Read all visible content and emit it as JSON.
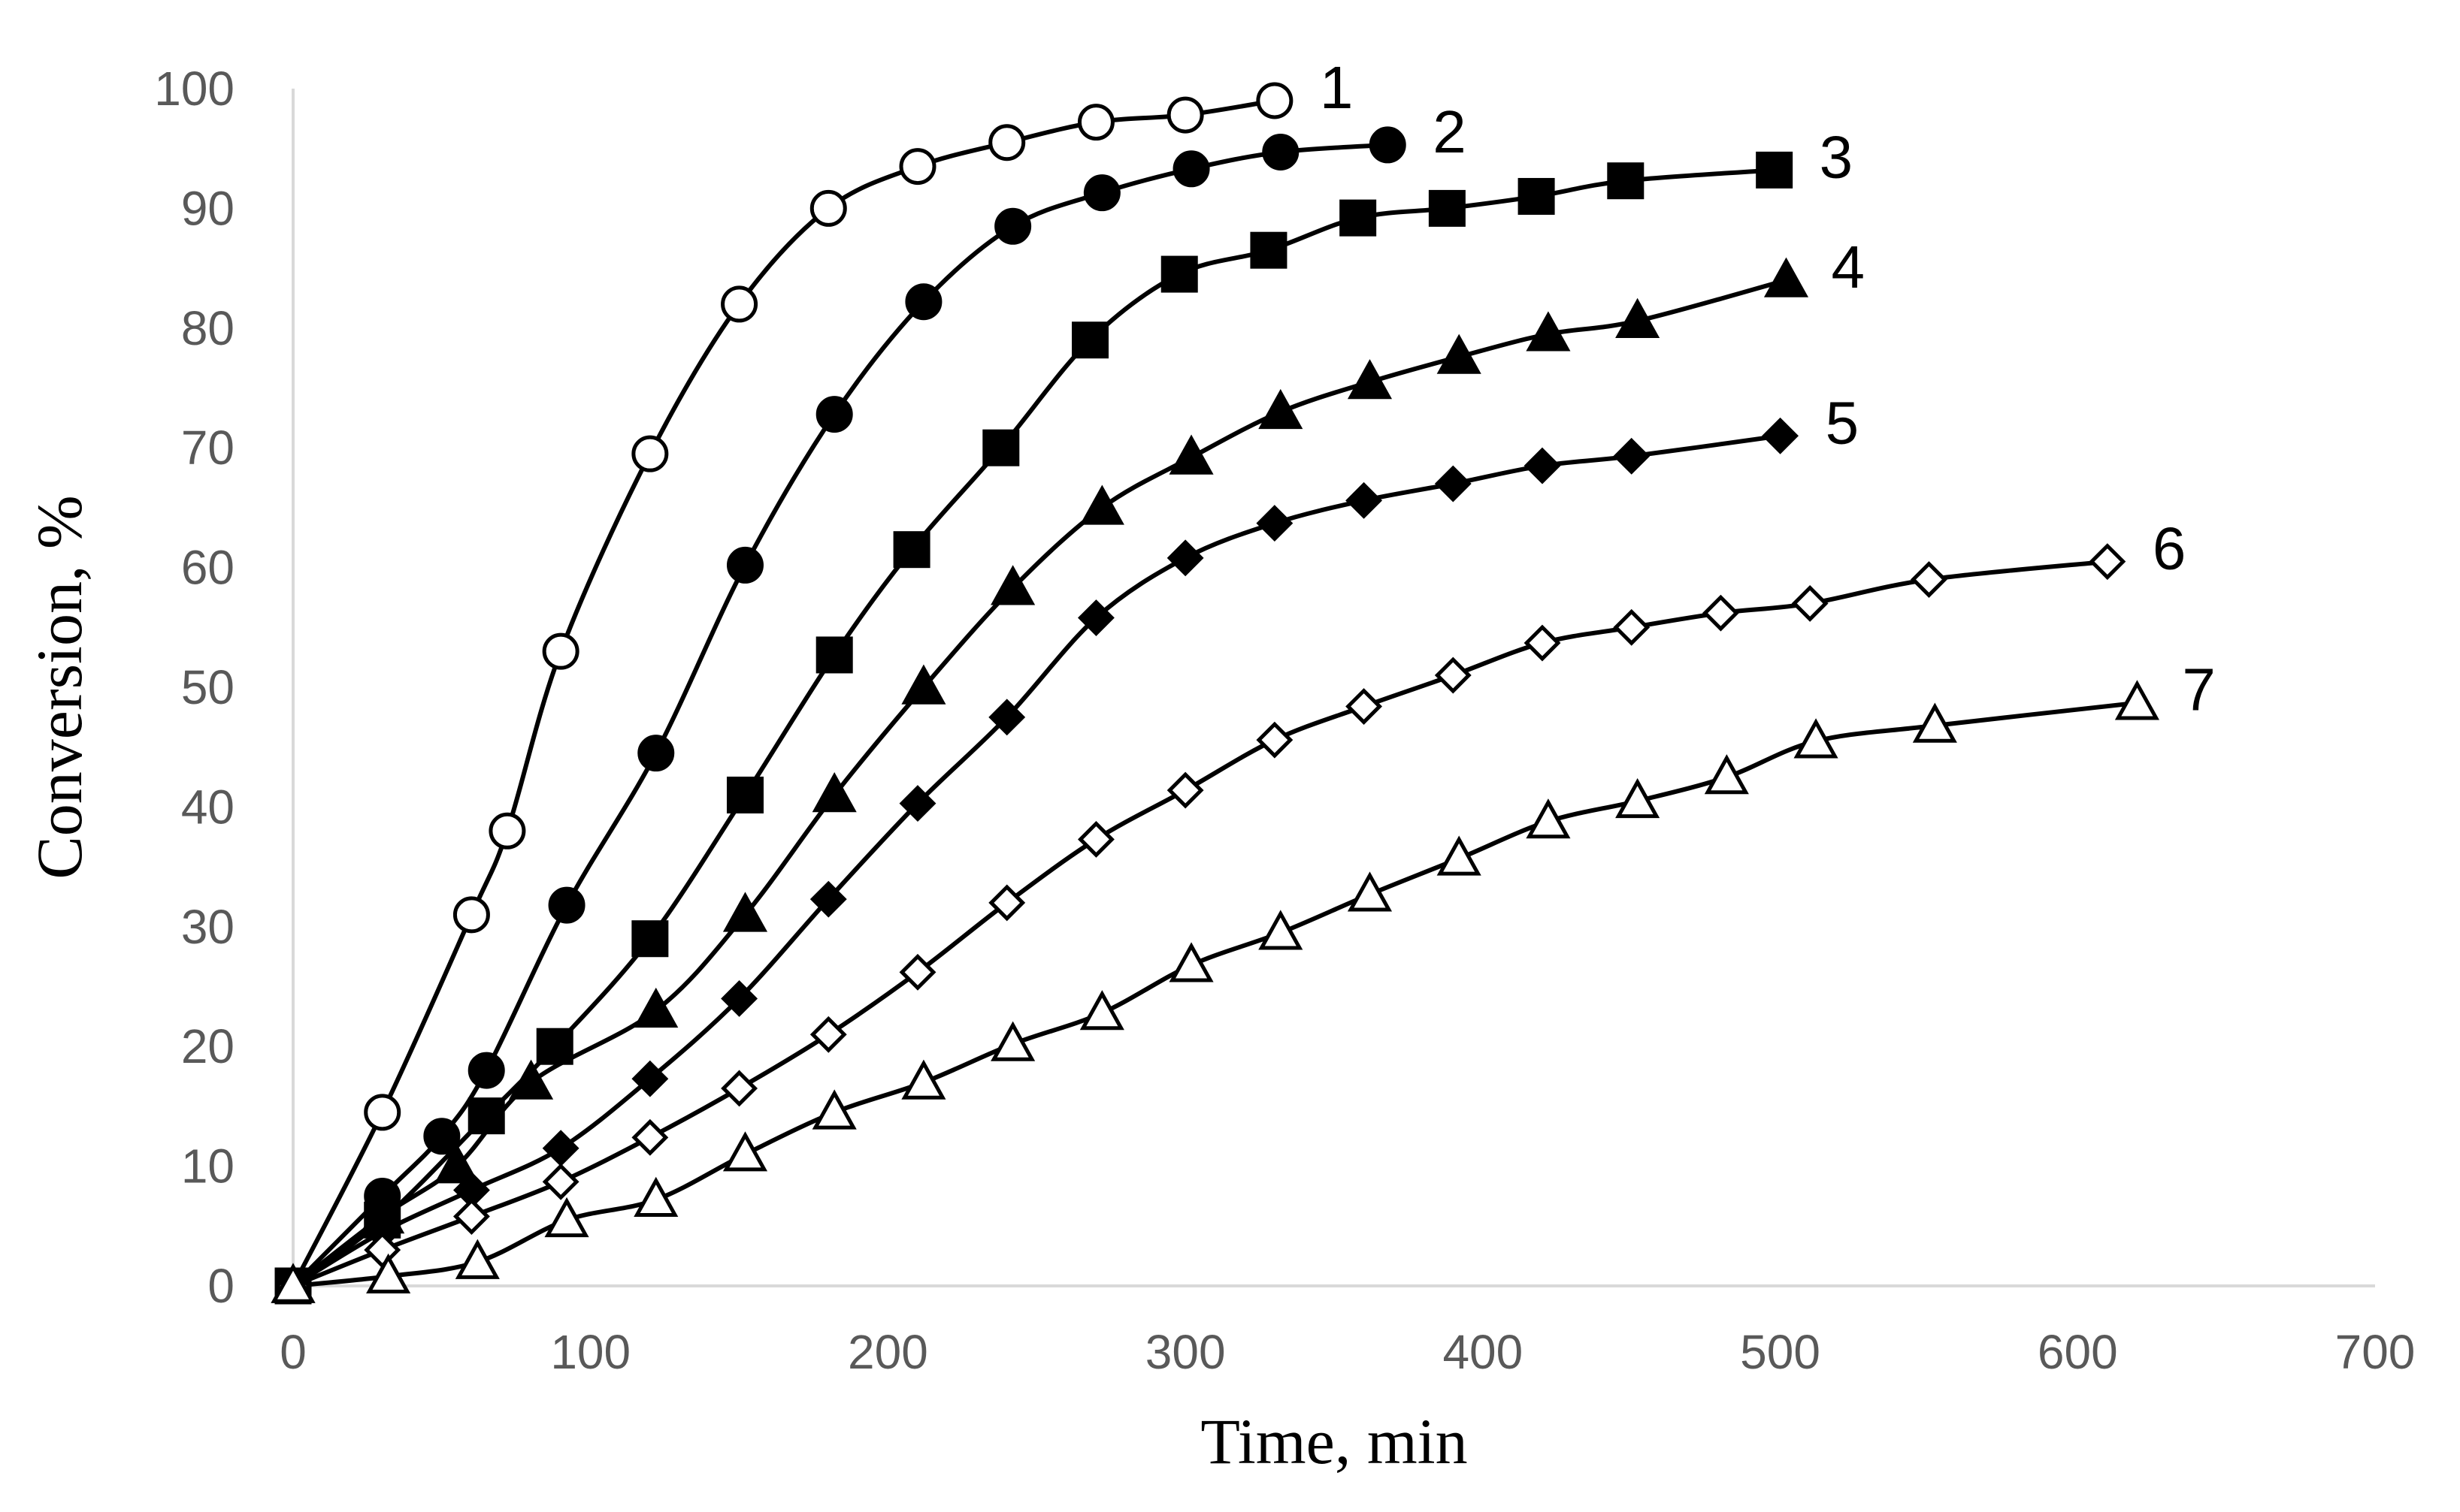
{
  "chart_data": {
    "type": "scatter",
    "title": "",
    "xlabel": "Time, min",
    "ylabel": "Conversion, %",
    "xlim": [
      0,
      700
    ],
    "ylim": [
      0,
      100
    ],
    "xticks": [
      "0",
      "100",
      "200",
      "300",
      "400",
      "500",
      "600",
      "700"
    ],
    "yticks": [
      "0",
      "10",
      "20",
      "30",
      "40",
      "50",
      "60",
      "70",
      "80",
      "90",
      "100"
    ],
    "grid": false,
    "legend": "inline labels at curve ends",
    "series": [
      {
        "name": "1",
        "marker": "circle-open",
        "x": [
          0,
          30,
          60,
          72,
          90,
          120,
          150,
          180,
          210,
          240,
          270,
          300,
          330
        ],
        "y": [
          0,
          14.5,
          31,
          38,
          53,
          69.5,
          82,
          90,
          93.5,
          95.5,
          97.2,
          97.8,
          99
        ]
      },
      {
        "name": "2",
        "marker": "circle-filled",
        "x": [
          0,
          30,
          50,
          65,
          92,
          122,
          152,
          182,
          212,
          242,
          272,
          302,
          332,
          368
        ],
        "y": [
          0,
          7.5,
          12.5,
          18,
          31.8,
          44.5,
          60.2,
          72.8,
          82.2,
          88.5,
          91.3,
          93.3,
          94.7,
          95.3
        ]
      },
      {
        "name": "3",
        "marker": "square-filled",
        "x": [
          0,
          30,
          65,
          88,
          120,
          152,
          182,
          208,
          238,
          268,
          298,
          328,
          358,
          388,
          418,
          448,
          498
        ],
        "y": [
          0,
          5.5,
          14.2,
          20,
          29,
          41,
          52.7,
          61.5,
          70,
          79,
          84.5,
          86.5,
          89.2,
          90,
          91,
          92.3,
          93.2
        ]
      },
      {
        "name": "4",
        "marker": "triangle-filled",
        "x": [
          0,
          30,
          55,
          80,
          122,
          152,
          182,
          212,
          242,
          272,
          302,
          332,
          362,
          392,
          422,
          452,
          502
        ],
        "y": [
          0,
          5.8,
          10,
          17,
          23,
          31,
          41,
          50,
          58.3,
          65,
          69.2,
          73,
          75.5,
          77.6,
          79.5,
          80.6,
          84
        ]
      },
      {
        "name": "5",
        "marker": "diamond-filled",
        "x": [
          0,
          30,
          60,
          90,
          120,
          150,
          180,
          210,
          240,
          270,
          300,
          330,
          360,
          390,
          420,
          450,
          500
        ],
        "y": [
          0,
          4.5,
          8,
          11.5,
          17.3,
          24,
          32.3,
          40.3,
          47.5,
          55.8,
          60.8,
          63.7,
          65.6,
          67,
          68.5,
          69.3,
          71
        ]
      },
      {
        "name": "6",
        "marker": "diamond-open",
        "x": [
          0,
          30,
          60,
          90,
          120,
          150,
          180,
          210,
          240,
          270,
          300,
          330,
          360,
          390,
          420,
          450,
          480,
          510,
          550,
          610
        ],
        "y": [
          0,
          3,
          5.8,
          8.7,
          12.4,
          16.5,
          21,
          26.2,
          32,
          37.3,
          41.4,
          45.6,
          48.4,
          51,
          53.7,
          55,
          56.2,
          57,
          59,
          60.5
        ]
      },
      {
        "name": "7",
        "marker": "triangle-open",
        "x": [
          0,
          32,
          62,
          92,
          122,
          152,
          182,
          212,
          242,
          272,
          302,
          332,
          362,
          392,
          422,
          452,
          482,
          512,
          552,
          620
        ],
        "y": [
          0,
          0.8,
          2,
          5.5,
          7.2,
          11,
          14.5,
          17,
          20.2,
          22.8,
          26.8,
          29.5,
          32.7,
          35.7,
          38.8,
          40.5,
          42.5,
          45.5,
          46.8,
          48.7
        ]
      }
    ]
  }
}
